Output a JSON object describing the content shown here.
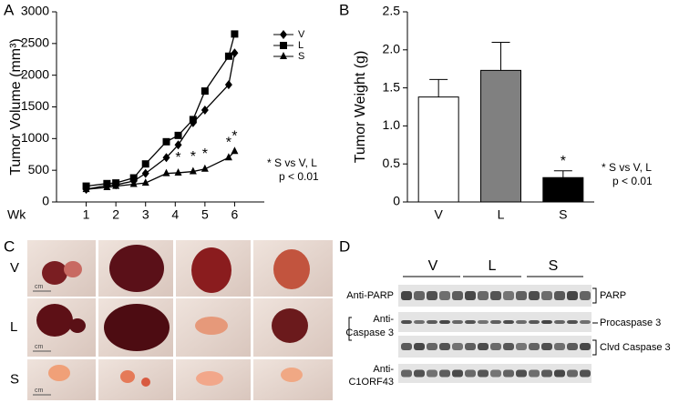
{
  "chart_data": [
    {
      "type": "line",
      "y_label": "Tumor Volume (mm³)",
      "x_label": "Wk",
      "x": [
        1,
        1.7,
        2,
        2.6,
        3,
        3.7,
        4.1,
        4.6,
        5,
        5.8,
        6
      ],
      "xlim": [
        0,
        7
      ],
      "xticks": [
        1,
        2,
        3,
        4,
        5,
        6
      ],
      "ylim": [
        0,
        3000
      ],
      "yticks": [
        0,
        500,
        1000,
        1500,
        2000,
        2500,
        3000
      ],
      "series": [
        {
          "name": "V",
          "color": "#000000",
          "marker": "diamond",
          "values": [
            200,
            260,
            270,
            330,
            450,
            700,
            900,
            1250,
            1450,
            1850,
            2350
          ]
        },
        {
          "name": "L",
          "color": "#000000",
          "marker": "square",
          "values": [
            250,
            290,
            300,
            380,
            600,
            950,
            1050,
            1300,
            1750,
            2300,
            2650
          ]
        },
        {
          "name": "S",
          "color": "#000000",
          "marker": "triangle",
          "values": [
            200,
            230,
            250,
            280,
            300,
            450,
            460,
            480,
            520,
            700,
            800
          ],
          "significant": [
            false,
            false,
            false,
            false,
            false,
            false,
            true,
            true,
            true,
            true,
            true
          ]
        }
      ],
      "significance_label": "*",
      "legend": "upper right",
      "note": [
        "* S vs V, L",
        "p < 0.01"
      ]
    },
    {
      "type": "bar",
      "y_label": "Tumor Weight (g)",
      "categories": [
        "V",
        "L",
        "S"
      ],
      "values": [
        1.38,
        1.73,
        0.32
      ],
      "errors": [
        0.23,
        0.37,
        0.09
      ],
      "colors": [
        "#ffffff",
        "#808080",
        "#000000"
      ],
      "ylim": [
        0,
        2.5
      ],
      "yticks": [
        0,
        0.5,
        {
          "value": 1,
          "label": "1.0"
        },
        1.5,
        {
          "value": 2,
          "label": "2.0"
        },
        2.5
      ],
      "significant": [
        false,
        false,
        true
      ],
      "significance_label": "*",
      "note": [
        "* S vs V, L",
        "p < 0.01"
      ]
    }
  ],
  "panels": [
    "A",
    "B",
    "C",
    "D"
  ],
  "photos": {
    "rows": [
      "V",
      "L",
      "S"
    ],
    "scale_label": "cm"
  },
  "blot": {
    "groups": [
      "V",
      "L",
      "S"
    ],
    "antibodies": [
      [
        "Anti-PARP"
      ],
      [
        "Anti-",
        "Caspase 3"
      ],
      [
        "Anti-",
        "C1ORF43"
      ]
    ],
    "bands": [
      "PARP",
      "Procaspase 3",
      "Clvd Caspase 3"
    ]
  }
}
